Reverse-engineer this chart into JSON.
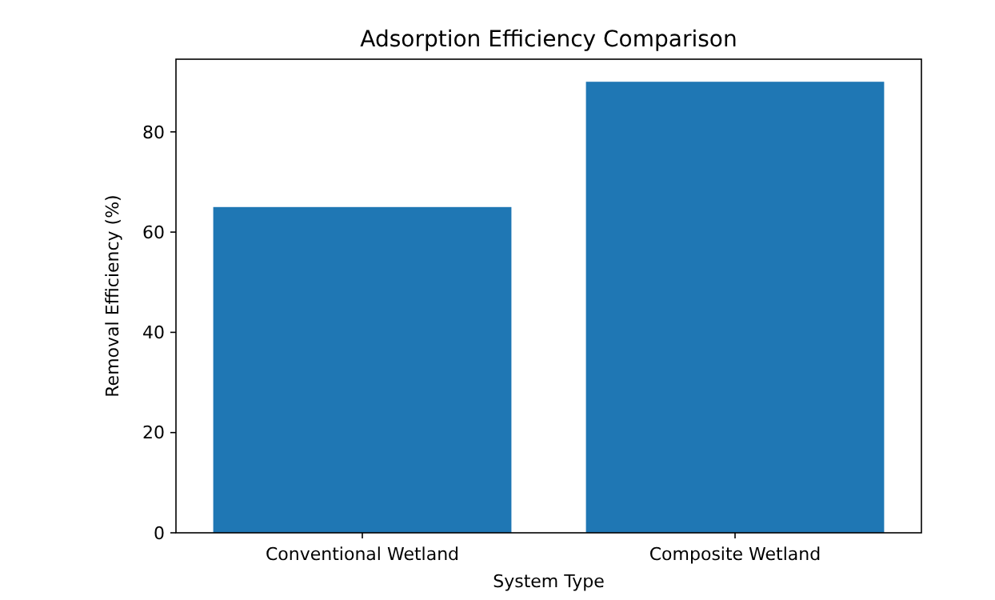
{
  "chart_data": {
    "type": "bar",
    "title": "Adsorption Efficiency Comparison",
    "xlabel": "System Type",
    "ylabel": "Removal Efficiency (%)",
    "categories": [
      "Conventional Wetland",
      "Composite Wetland"
    ],
    "values": [
      65,
      90
    ],
    "color": "#1f77b4",
    "ylim": [
      0,
      94.5
    ],
    "yticks": [
      0,
      20,
      40,
      60,
      80
    ],
    "grid": false
  }
}
